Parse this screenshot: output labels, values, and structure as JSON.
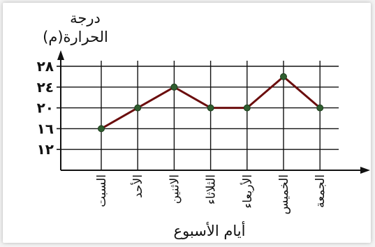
{
  "chart_data": {
    "type": "line",
    "title": "",
    "ylabel_line1": "درجة",
    "ylabel_line2": "الحرارة(م)",
    "xlabel": "أيام الأسبوع",
    "y_ticks": [
      12,
      16,
      20,
      24,
      28
    ],
    "y_tick_labels": [
      "١٢",
      "١٦",
      "٢٠",
      "٢٤",
      "٢٨"
    ],
    "ylim": [
      8,
      30
    ],
    "categories": [
      "السبت",
      "الأحد",
      "الاثنين",
      "الثلاثاء",
      "الأربعاء",
      "الخميس",
      "الجمعة"
    ],
    "series": [
      {
        "values": [
          16,
          20,
          24,
          20,
          20,
          26,
          20
        ]
      }
    ],
    "grid": true,
    "colors": {
      "line": "#6b0d0d",
      "marker": "#2f5e2f",
      "grid": "#111111",
      "axis": "#111111"
    }
  }
}
